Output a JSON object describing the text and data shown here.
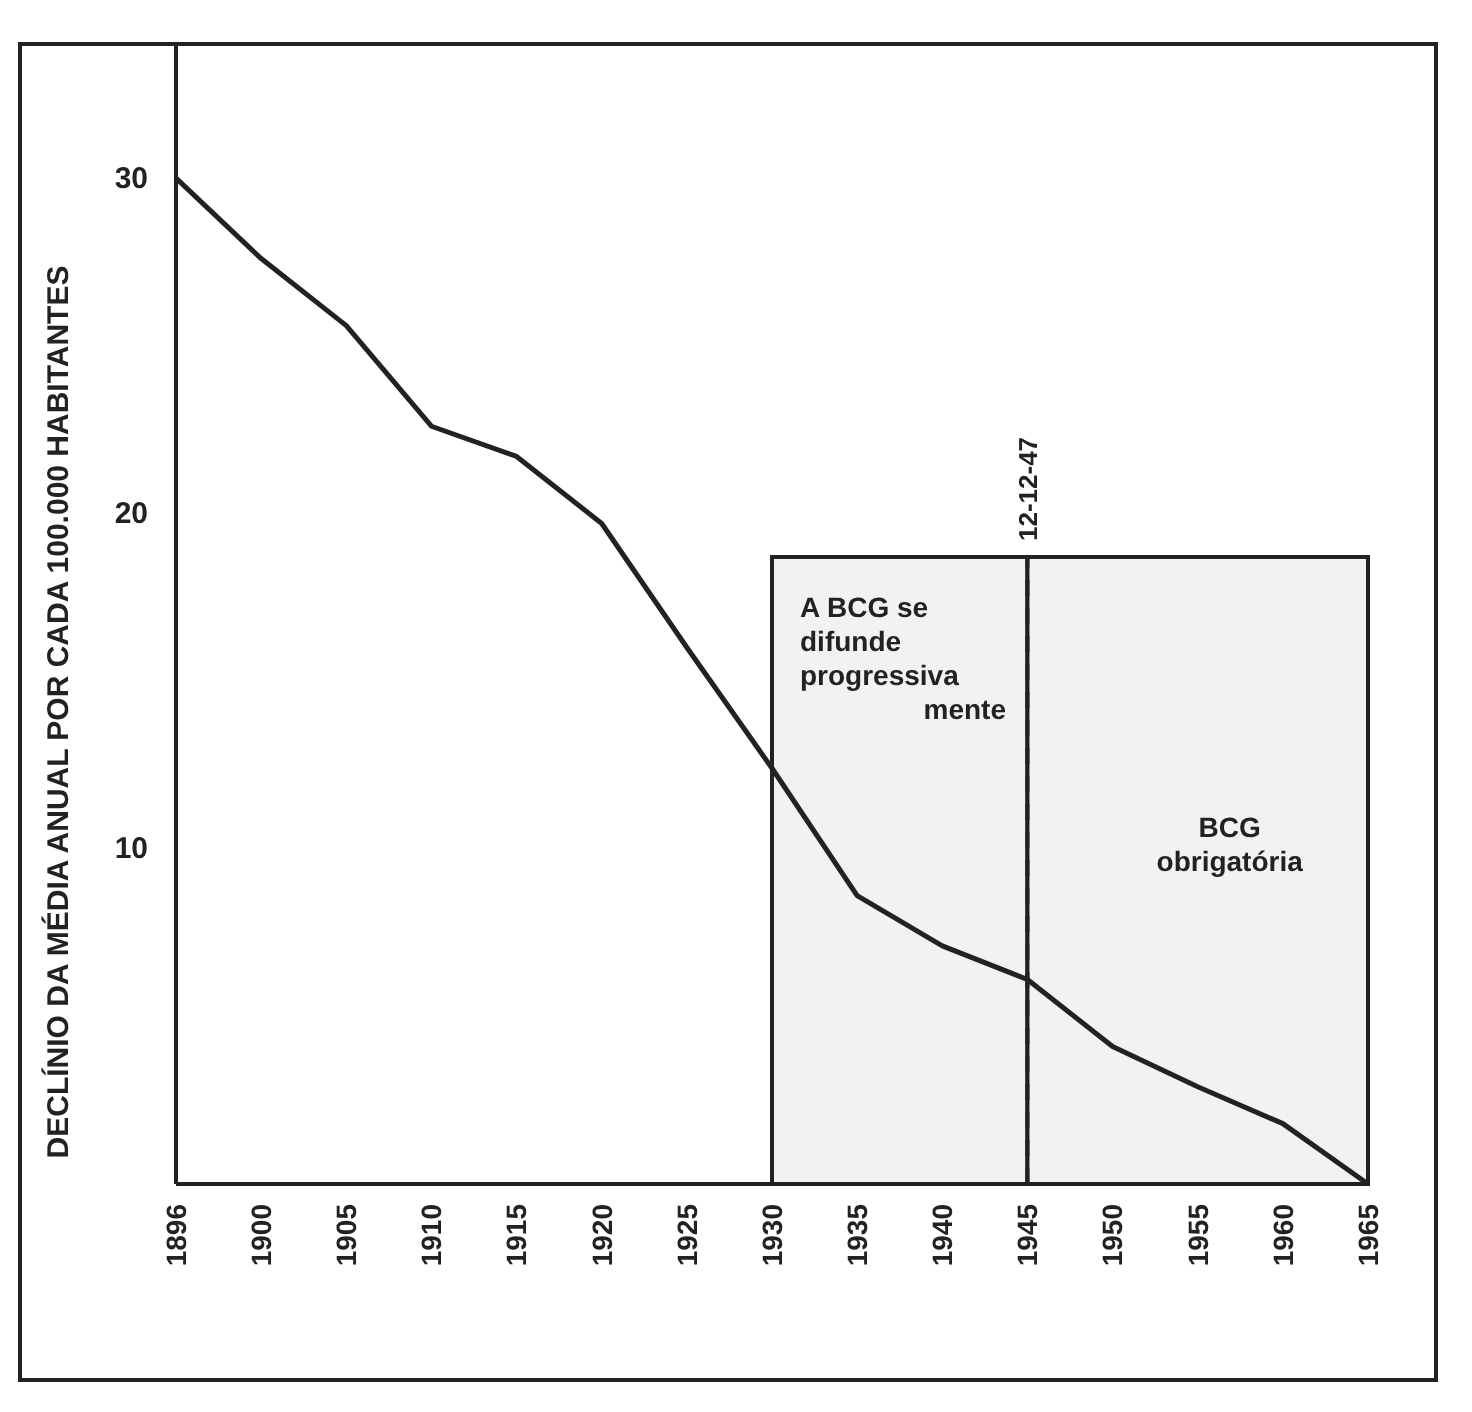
{
  "chart_data": {
    "type": "line",
    "ylabel": "DECLÍNIO DA MÉDIA ANUAL POR CADA 100.000 HABITANTES",
    "categories": [
      "1896",
      "1900",
      "1905",
      "1910",
      "1915",
      "1920",
      "1925",
      "1930",
      "1935",
      "1940",
      "1945",
      "1950",
      "1955",
      "1960",
      "1965"
    ],
    "series": [
      {
        "color": "#222222",
        "values": [
          30,
          27.6,
          25.6,
          22.6,
          21.7,
          19.7,
          16,
          12.4,
          8.6,
          7.1,
          6.1,
          4.1,
          2.9,
          1.8,
          0
        ]
      }
    ],
    "ylim": [
      0,
      34
    ],
    "yticks": [
      10,
      20,
      30
    ],
    "ref_lines": [
      {
        "axis": "x",
        "value": "1945",
        "label": "12-12-47",
        "line_style": "dashed"
      }
    ],
    "bands": [
      {
        "axis": "x",
        "from": "1930",
        "to": "1945",
        "label": "A BCG se\ndifunde\nprogressiva\nmente",
        "color": "#f2f2f2"
      },
      {
        "axis": "x",
        "from": "1945",
        "to": "1965",
        "label": "BCG\nobrigatória",
        "color": "#f2f2f2"
      }
    ],
    "grid": false,
    "marker": "none",
    "line_style": "solid"
  }
}
